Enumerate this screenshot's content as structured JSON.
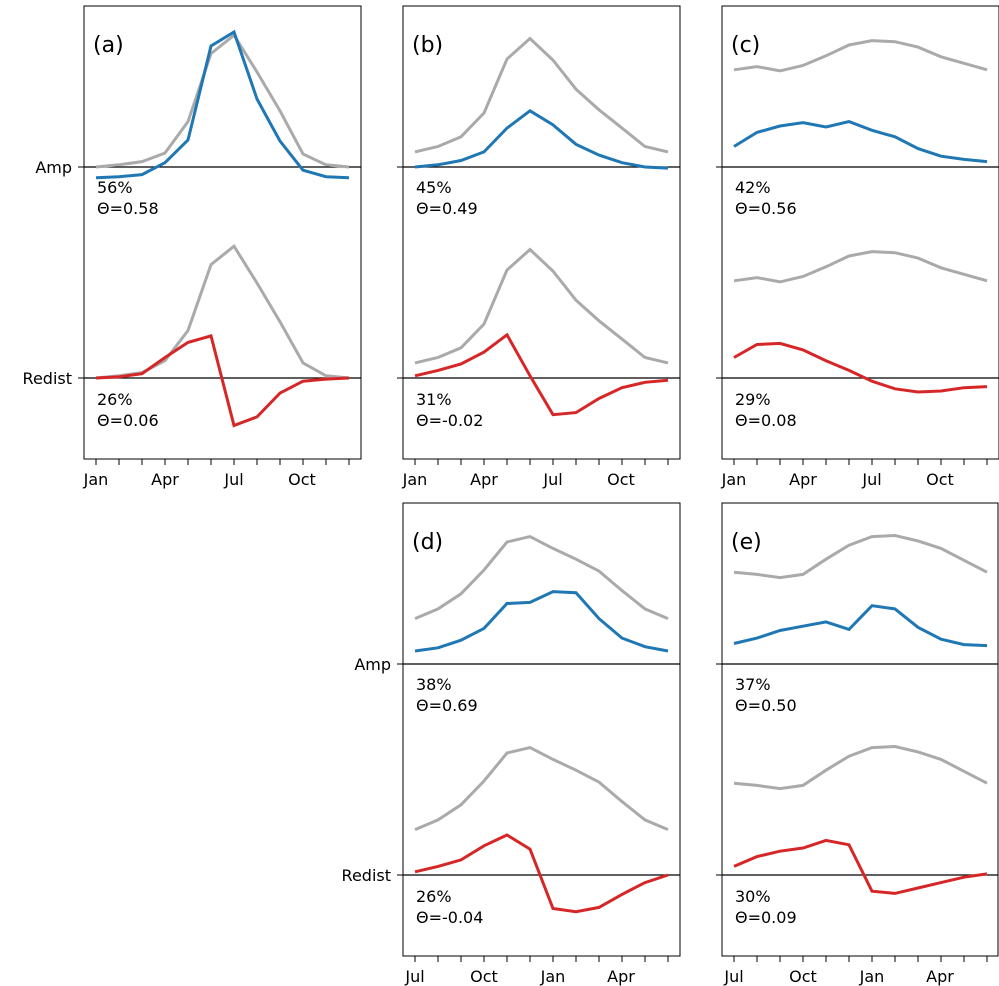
{
  "chart_data": [
    {
      "type": "line",
      "panel_label": "(a)",
      "ylabels": {
        "upper": "Amp",
        "lower": "Redist"
      },
      "x_tick_labels": [
        "Jan",
        "",
        "",
        "Apr",
        "",
        "",
        "Jul",
        "",
        "",
        "Oct",
        "",
        ""
      ],
      "upper": {
        "reference": [
          0.0,
          0.02,
          0.05,
          0.13,
          0.42,
          1.05,
          1.22,
          0.88,
          0.52,
          0.12,
          0.02,
          0.0
        ],
        "series": [
          -0.1,
          -0.09,
          -0.07,
          0.04,
          0.25,
          1.12,
          1.25,
          0.63,
          0.24,
          -0.03,
          -0.09,
          -0.1
        ],
        "color": "#1f77b4",
        "annotations": [
          "56%",
          "Θ=0.58"
        ]
      },
      "lower": {
        "reference": [
          0.0,
          0.02,
          0.05,
          0.16,
          0.44,
          1.05,
          1.22,
          0.88,
          0.52,
          0.14,
          0.02,
          0.0
        ],
        "series": [
          0.0,
          0.01,
          0.04,
          0.19,
          0.33,
          0.39,
          -0.44,
          -0.36,
          -0.14,
          -0.03,
          -0.01,
          0.0
        ],
        "color": "#d62728",
        "annotations": [
          "26%",
          "Θ=0.06"
        ]
      }
    },
    {
      "type": "line",
      "panel_label": "(b)",
      "ylabels": {
        "upper": "",
        "lower": ""
      },
      "x_tick_labels": [
        "Jan",
        "",
        "",
        "Apr",
        "",
        "",
        "Jul",
        "",
        "",
        "Oct",
        "",
        ""
      ],
      "upper": {
        "reference": [
          0.14,
          0.19,
          0.28,
          0.5,
          1.0,
          1.19,
          0.99,
          0.72,
          0.53,
          0.36,
          0.19,
          0.14
        ],
        "series": [
          0.0,
          0.02,
          0.06,
          0.14,
          0.36,
          0.52,
          0.39,
          0.21,
          0.11,
          0.04,
          0.0,
          -0.01
        ],
        "color": "#1f77b4",
        "annotations": [
          "45%",
          "Θ=0.49"
        ]
      },
      "lower": {
        "reference": [
          0.14,
          0.19,
          0.28,
          0.5,
          1.0,
          1.19,
          0.99,
          0.72,
          0.53,
          0.36,
          0.19,
          0.14
        ],
        "series": [
          0.02,
          0.07,
          0.13,
          0.24,
          0.4,
          0.02,
          -0.34,
          -0.32,
          -0.19,
          -0.09,
          -0.04,
          -0.02
        ],
        "color": "#d62728",
        "annotations": [
          "31%",
          "Θ=-0.02"
        ]
      }
    },
    {
      "type": "line",
      "panel_label": "(c)",
      "ylabels": {
        "upper": "",
        "lower": ""
      },
      "x_tick_labels": [
        "Jan",
        "",
        "",
        "Apr",
        "",
        "",
        "Jul",
        "",
        "",
        "Oct",
        "",
        ""
      ],
      "upper": {
        "reference": [
          0.9,
          0.93,
          0.89,
          0.94,
          1.03,
          1.13,
          1.17,
          1.16,
          1.11,
          1.02,
          0.96,
          0.9
        ],
        "series": [
          0.19,
          0.32,
          0.38,
          0.41,
          0.37,
          0.42,
          0.34,
          0.28,
          0.17,
          0.1,
          0.07,
          0.05
        ],
        "color": "#1f77b4",
        "annotations": [
          "42%",
          "Θ=0.56"
        ]
      },
      "lower": {
        "reference": [
          0.9,
          0.93,
          0.89,
          0.94,
          1.03,
          1.13,
          1.17,
          1.16,
          1.11,
          1.02,
          0.96,
          0.9
        ],
        "series": [
          0.19,
          0.31,
          0.32,
          0.26,
          0.16,
          0.07,
          -0.03,
          -0.1,
          -0.13,
          -0.12,
          -0.09,
          -0.08
        ],
        "color": "#d62728",
        "annotations": [
          "29%",
          "Θ=0.08"
        ]
      }
    },
    {
      "type": "line",
      "panel_label": "(d)",
      "ylabels": {
        "upper": "Amp",
        "lower": "Redist"
      },
      "x_tick_labels": [
        "Jul",
        "",
        "",
        "Oct",
        "",
        "",
        "Jan",
        "",
        "",
        "Apr",
        "",
        ""
      ],
      "upper": {
        "reference": [
          0.42,
          0.51,
          0.65,
          0.87,
          1.13,
          1.18,
          1.07,
          0.97,
          0.86,
          0.68,
          0.51,
          0.42
        ],
        "series": [
          0.12,
          0.15,
          0.22,
          0.33,
          0.56,
          0.57,
          0.67,
          0.66,
          0.42,
          0.24,
          0.16,
          0.12
        ],
        "color": "#1f77b4",
        "annotations": [
          "38%",
          "Θ=0.69"
        ]
      },
      "lower": {
        "reference": [
          0.42,
          0.51,
          0.65,
          0.87,
          1.13,
          1.18,
          1.07,
          0.97,
          0.86,
          0.68,
          0.51,
          0.42
        ],
        "series": [
          0.03,
          0.08,
          0.14,
          0.27,
          0.37,
          0.24,
          -0.31,
          -0.34,
          -0.3,
          -0.18,
          -0.07,
          0.0
        ],
        "color": "#d62728",
        "annotations": [
          "26%",
          "Θ=-0.04"
        ]
      }
    },
    {
      "type": "line",
      "panel_label": "(e)",
      "ylabels": {
        "upper": "",
        "lower": ""
      },
      "x_tick_labels": [
        "Jul",
        "",
        "",
        "Oct",
        "",
        "",
        "Jan",
        "",
        "",
        "Apr",
        "",
        ""
      ],
      "upper": {
        "reference": [
          0.85,
          0.83,
          0.8,
          0.83,
          0.97,
          1.1,
          1.18,
          1.19,
          1.14,
          1.07,
          0.96,
          0.85
        ],
        "series": [
          0.19,
          0.24,
          0.31,
          0.35,
          0.39,
          0.32,
          0.54,
          0.51,
          0.34,
          0.23,
          0.18,
          0.17
        ],
        "color": "#1f77b4",
        "annotations": [
          "37%",
          "Θ=0.50"
        ]
      },
      "lower": {
        "reference": [
          0.85,
          0.83,
          0.8,
          0.83,
          0.97,
          1.1,
          1.18,
          1.19,
          1.14,
          1.07,
          0.96,
          0.85
        ],
        "series": [
          0.08,
          0.17,
          0.22,
          0.25,
          0.32,
          0.28,
          -0.15,
          -0.17,
          -0.12,
          -0.07,
          -0.02,
          0.01
        ],
        "color": "#d62728",
        "annotations": [
          "30%",
          "Θ=0.09"
        ]
      }
    }
  ],
  "colors": {
    "reference": "#aaaaaa",
    "amp": "#1f77b4",
    "redist": "#d62728",
    "axis": "#000000"
  }
}
